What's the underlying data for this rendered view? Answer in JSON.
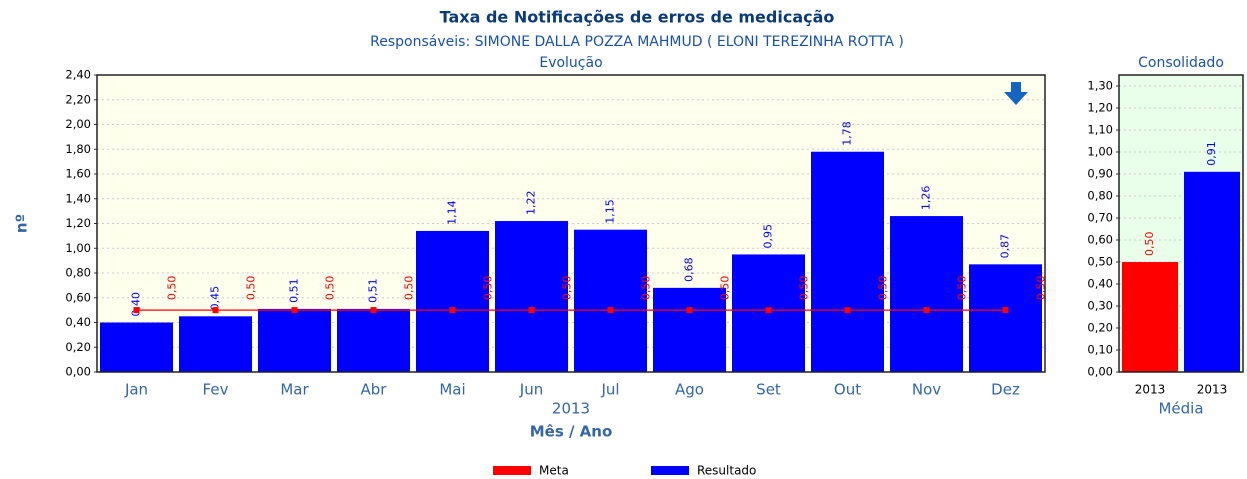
{
  "chart_data": [
    {
      "type": "bar",
      "title": "Taxa de Notificações de erros de medicação",
      "subtitle": "Responsáveis: SIMONE DALLA POZZA MAHMUD ( ELONI TEREZINHA ROTTA )",
      "panel_title": "Evolução",
      "categories": [
        "Jan",
        "Fev",
        "Mar",
        "Abr",
        "Mai",
        "Jun",
        "Jul",
        "Ago",
        "Set",
        "Out",
        "Nov",
        "Dez"
      ],
      "x_group_label": "2013",
      "x_label": "Mês / Ano",
      "y_label": "nº",
      "series": [
        {
          "name": "Meta",
          "type": "line",
          "color": "#ff0000",
          "values": [
            0.5,
            0.5,
            0.5,
            0.5,
            0.5,
            0.5,
            0.5,
            0.5,
            0.5,
            0.5,
            0.5,
            0.5
          ],
          "value_labels": [
            "0,50",
            "0,50",
            "0,50",
            "0,50",
            "0,50",
            "0,50",
            "0,50",
            "0,50",
            "0,50",
            "0,50",
            "0,50",
            "0,50"
          ]
        },
        {
          "name": "Resultado",
          "type": "bar",
          "color": "#0000ff",
          "values": [
            0.4,
            0.45,
            0.51,
            0.51,
            1.14,
            1.22,
            1.15,
            0.68,
            0.95,
            1.78,
            1.26,
            0.87
          ],
          "value_labels": [
            "0,40",
            "0,45",
            "0,51",
            "0,51",
            "1,14",
            "1,22",
            "1,15",
            "0,68",
            "0,95",
            "1,78",
            "1,26",
            "0,87"
          ]
        }
      ],
      "ylim": [
        0,
        2.4
      ],
      "yticks": [
        {
          "value": 0,
          "label": "0,00"
        },
        {
          "value": 0.2,
          "label": "0,20"
        },
        {
          "value": 0.4,
          "label": "0,40"
        },
        {
          "value": 0.6,
          "label": "0,60"
        },
        {
          "value": 0.8,
          "label": "0,80"
        },
        {
          "value": 1.0,
          "label": "1,00"
        },
        {
          "value": 1.2,
          "label": "1,20"
        },
        {
          "value": 1.4,
          "label": "1,40"
        },
        {
          "value": 1.6,
          "label": "1,60"
        },
        {
          "value": 1.8,
          "label": "1,80"
        },
        {
          "value": 2.0,
          "label": "2,00"
        },
        {
          "value": 2.2,
          "label": "2,20"
        },
        {
          "value": 2.4,
          "label": "2,40"
        }
      ],
      "grid": true
    },
    {
      "type": "bar",
      "title": "Consolidado",
      "categories": [
        "2013",
        "2013"
      ],
      "x_label": "Média",
      "values": [
        0.5,
        0.91
      ],
      "value_labels": [
        "0,50",
        "0,91"
      ],
      "colors": [
        "#ff0000",
        "#0000ff"
      ],
      "ylim": [
        0,
        1.35
      ],
      "yticks": [
        {
          "value": 0,
          "label": "0,00"
        },
        {
          "value": 0.1,
          "label": "0,10"
        },
        {
          "value": 0.2,
          "label": "0,20"
        },
        {
          "value": 0.3,
          "label": "0,30"
        },
        {
          "value": 0.4,
          "label": "0,40"
        },
        {
          "value": 0.5,
          "label": "0,50"
        },
        {
          "value": 0.6,
          "label": "0,60"
        },
        {
          "value": 0.7,
          "label": "0,70"
        },
        {
          "value": 0.8,
          "label": "0,80"
        },
        {
          "value": 0.9,
          "label": "0,90"
        },
        {
          "value": 1.0,
          "label": "1,00"
        },
        {
          "value": 1.1,
          "label": "1,10"
        },
        {
          "value": 1.2,
          "label": "1,20"
        },
        {
          "value": 1.3,
          "label": "1,30"
        }
      ],
      "grid": true
    }
  ]
}
